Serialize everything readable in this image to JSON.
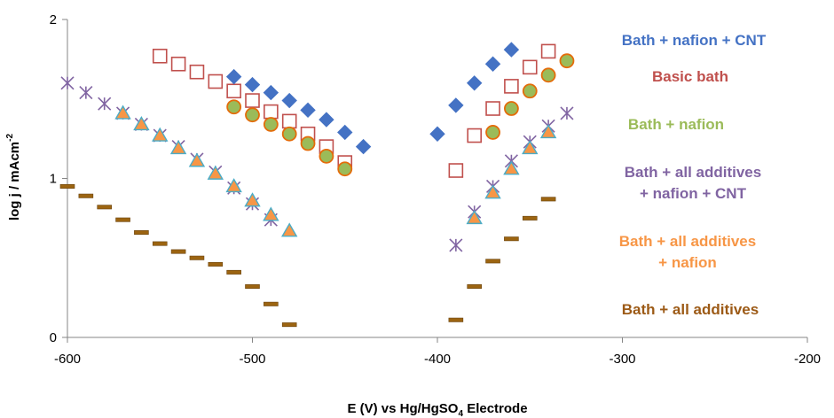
{
  "chart_data": {
    "type": "scatter",
    "title": "",
    "xlabel": "E (V) vs Hg/HgSO",
    "xlabel_subscript": "4",
    "xlabel_suffix": " Electrode",
    "ylabel": "log j / mAcm",
    "ylabel_superscript": "-2",
    "xlim": [
      -600,
      -200
    ],
    "ylim": [
      0,
      2
    ],
    "x_ticks": [
      -600,
      -500,
      -400,
      -300,
      -200
    ],
    "y_ticks": [
      0,
      1,
      2
    ],
    "grid": false,
    "legend_placement": "right",
    "series": [
      {
        "name": "Bath + nafion + CNT",
        "marker": "diamond",
        "fill": "#4472C4",
        "stroke": "#4472C4",
        "label_color": "#4472C4",
        "points": [
          [
            -510,
            1.64
          ],
          [
            -500,
            1.59
          ],
          [
            -490,
            1.54
          ],
          [
            -480,
            1.49
          ],
          [
            -470,
            1.43
          ],
          [
            -460,
            1.37
          ],
          [
            -450,
            1.29
          ],
          [
            -440,
            1.2
          ],
          [
            -400,
            1.28
          ],
          [
            -390,
            1.46
          ],
          [
            -380,
            1.6
          ],
          [
            -370,
            1.72
          ],
          [
            -360,
            1.81
          ]
        ]
      },
      {
        "name": "Basic bath",
        "marker": "square-open",
        "fill": "none",
        "stroke": "#C0504D",
        "label_color": "#C0504D",
        "points": [
          [
            -550,
            1.77
          ],
          [
            -540,
            1.72
          ],
          [
            -530,
            1.67
          ],
          [
            -520,
            1.61
          ],
          [
            -510,
            1.55
          ],
          [
            -500,
            1.49
          ],
          [
            -490,
            1.42
          ],
          [
            -480,
            1.36
          ],
          [
            -470,
            1.28
          ],
          [
            -460,
            1.2
          ],
          [
            -450,
            1.1
          ],
          [
            -390,
            1.05
          ],
          [
            -380,
            1.27
          ],
          [
            -370,
            1.44
          ],
          [
            -360,
            1.58
          ],
          [
            -350,
            1.7
          ],
          [
            -340,
            1.8
          ]
        ]
      },
      {
        "name": "Bath + nafion",
        "marker": "circle",
        "fill": "#9BBB59",
        "stroke": "#E46C0A",
        "label_color": "#9BBB59",
        "points": [
          [
            -510,
            1.45
          ],
          [
            -500,
            1.4
          ],
          [
            -490,
            1.34
          ],
          [
            -480,
            1.28
          ],
          [
            -470,
            1.22
          ],
          [
            -460,
            1.14
          ],
          [
            -450,
            1.06
          ],
          [
            -370,
            1.29
          ],
          [
            -360,
            1.44
          ],
          [
            -350,
            1.55
          ],
          [
            -340,
            1.65
          ],
          [
            -330,
            1.74
          ]
        ]
      },
      {
        "name": "Bath + all additives\n+ nafion + CNT",
        "marker": "star",
        "fill": "none",
        "stroke": "#8064A2",
        "label_color": "#8064A2",
        "points": [
          [
            -600,
            1.6
          ],
          [
            -590,
            1.54
          ],
          [
            -580,
            1.47
          ],
          [
            -570,
            1.41
          ],
          [
            -560,
            1.34
          ],
          [
            -550,
            1.27
          ],
          [
            -540,
            1.2
          ],
          [
            -530,
            1.12
          ],
          [
            -520,
            1.04
          ],
          [
            -510,
            0.94
          ],
          [
            -500,
            0.84
          ],
          [
            -490,
            0.74
          ],
          [
            -390,
            0.58
          ],
          [
            -380,
            0.79
          ],
          [
            -370,
            0.95
          ],
          [
            -360,
            1.11
          ],
          [
            -350,
            1.23
          ],
          [
            -340,
            1.33
          ],
          [
            -330,
            1.41
          ]
        ]
      },
      {
        "name": "Bath + all additives\n+ nafion",
        "marker": "triangle",
        "fill": "#F79646",
        "stroke": "#4BACC6",
        "label_color": "#F79646",
        "points": [
          [
            -570,
            1.41
          ],
          [
            -560,
            1.34
          ],
          [
            -550,
            1.27
          ],
          [
            -540,
            1.19
          ],
          [
            -530,
            1.11
          ],
          [
            -520,
            1.03
          ],
          [
            -510,
            0.95
          ],
          [
            -500,
            0.86
          ],
          [
            -490,
            0.77
          ],
          [
            -480,
            0.67
          ],
          [
            -380,
            0.75
          ],
          [
            -370,
            0.91
          ],
          [
            -360,
            1.06
          ],
          [
            -350,
            1.19
          ],
          [
            -340,
            1.29
          ]
        ]
      },
      {
        "name": "Bath + all additives",
        "marker": "dash",
        "fill": "#9C6411",
        "stroke": "#6B4410",
        "label_color": "#9C5A16",
        "points": [
          [
            -600,
            0.95
          ],
          [
            -590,
            0.89
          ],
          [
            -580,
            0.82
          ],
          [
            -570,
            0.74
          ],
          [
            -560,
            0.66
          ],
          [
            -550,
            0.59
          ],
          [
            -540,
            0.54
          ],
          [
            -530,
            0.5
          ],
          [
            -520,
            0.46
          ],
          [
            -510,
            0.41
          ],
          [
            -500,
            0.32
          ],
          [
            -490,
            0.21
          ],
          [
            -480,
            0.08
          ],
          [
            -390,
            0.11
          ],
          [
            -380,
            0.32
          ],
          [
            -370,
            0.48
          ],
          [
            -360,
            0.62
          ],
          [
            -350,
            0.75
          ],
          [
            -340,
            0.87
          ]
        ]
      }
    ]
  }
}
